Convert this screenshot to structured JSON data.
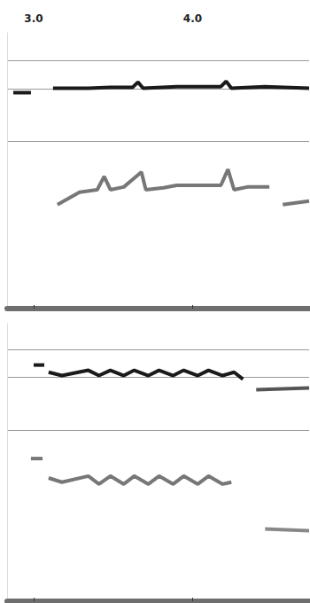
{
  "chart_data": [
    {
      "type": "line",
      "xlim": [
        2.833,
        4.733
      ],
      "xticks": [
        {
          "value": 3,
          "label": "3.0"
        },
        {
          "value": 4,
          "label": "4.0"
        }
      ],
      "ylim": [
        0,
        100
      ],
      "yticks": [
        60.7,
        79.6,
        89.8
      ],
      "grid": true,
      "tick_labels": "x",
      "series": [
        {
          "color": "#1a1a1a",
          "x": [
            2.872,
            2.983
          ],
          "values": [
            78.3,
            78.3
          ]
        },
        {
          "color": "#1a1a1a",
          "x": [
            3.122,
            3.344,
            3.483,
            3.622,
            3.656,
            3.689,
            3.9,
            4.178,
            4.211,
            4.244,
            4.456,
            4.733
          ],
          "values": [
            79.9,
            79.9,
            80.2,
            80.2,
            82.1,
            79.9,
            80.5,
            80.5,
            82.4,
            79.9,
            80.5,
            79.9
          ]
        },
        {
          "color": "#777777",
          "x": [
            3.15,
            3.289,
            3.4,
            3.444,
            3.483,
            3.567,
            3.678,
            3.706,
            3.817,
            3.9,
            4.178,
            4.222,
            4.261,
            4.344,
            4.483
          ],
          "values": [
            37.7,
            42.2,
            43.1,
            47.9,
            43.1,
            44.1,
            49.5,
            43.1,
            43.8,
            44.7,
            44.7,
            50.5,
            43.1,
            44.1,
            44.1
          ]
        },
        {
          "color": "#777777",
          "x": [
            4.567,
            4.733
          ],
          "values": [
            37.7,
            39.0
          ]
        }
      ]
    },
    {
      "type": "line",
      "xlim": [
        2.833,
        4.733
      ],
      "xticks": [
        3,
        4
      ],
      "ylim": [
        0,
        100
      ],
      "yticks": [
        61.6,
        80.6,
        90.5
      ],
      "grid": true,
      "tick_labels": false,
      "series": [
        {
          "color": "#1a1a1a",
          "x": [
            3.0,
            3.067
          ],
          "values": [
            85.1,
            85.1
          ]
        },
        {
          "color": "#1a1a1a",
          "x": [
            3.094,
            3.178,
            3.344,
            3.411,
            3.483,
            3.567,
            3.633,
            3.722,
            3.789,
            3.878,
            3.944,
            4.033,
            4.1,
            4.189,
            4.261,
            4.317
          ],
          "values": [
            82.5,
            81.3,
            83.2,
            81.3,
            83.2,
            81.3,
            83.2,
            81.3,
            83.2,
            81.3,
            83.2,
            81.3,
            83.2,
            81.3,
            82.5,
            80.0
          ]
        },
        {
          "color": "#555555",
          "x": [
            4.4,
            4.733
          ],
          "values": [
            76.2,
            76.8
          ]
        },
        {
          "color": "#777777",
          "x": [
            2.983,
            3.056
          ],
          "values": [
            51.4,
            51.4
          ]
        },
        {
          "color": "#777777",
          "x": [
            3.094,
            3.178,
            3.344,
            3.411,
            3.483,
            3.567,
            3.633,
            3.722,
            3.789,
            3.878,
            3.944,
            4.033,
            4.1,
            4.189,
            4.244
          ],
          "values": [
            44.4,
            42.9,
            45.1,
            42.2,
            45.1,
            42.2,
            45.1,
            42.2,
            45.1,
            42.2,
            45.1,
            42.2,
            45.1,
            42.2,
            42.9
          ]
        },
        {
          "color": "#888888",
          "x": [
            4.456,
            4.733
          ],
          "values": [
            26.0,
            25.4
          ]
        }
      ]
    }
  ]
}
